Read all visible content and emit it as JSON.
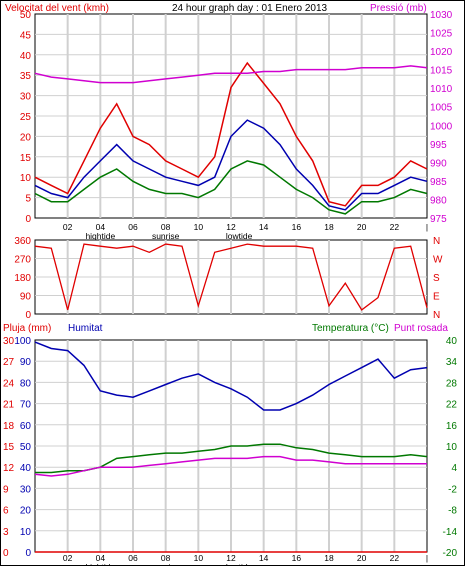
{
  "colors": {
    "red": "#e00000",
    "blue": "#0000b0",
    "green": "#007800",
    "magenta": "#d000d0",
    "grid": "#d0d0d0",
    "frame": "#000000"
  },
  "chart_data": [
    {
      "type": "line",
      "title": "24 hour graph day : 01 Enero 2013",
      "ylabel_left": "Velocitat del vent (kmh)",
      "ylabel_right": "Pressió (mb)",
      "ylim_left": [
        0,
        50
      ],
      "ylim_right": [
        975,
        1030
      ],
      "yticks_left": [
        "0",
        "5",
        "10",
        "15",
        "20",
        "25",
        "30",
        "35",
        "40",
        "45",
        "50"
      ],
      "yticks_right": [
        "975",
        "980",
        "985",
        "990",
        "995",
        "1000",
        "1005",
        "1010",
        "1015",
        "1020",
        "1025",
        "1030"
      ],
      "xticks": [
        "02",
        "04",
        "06",
        "08",
        "10",
        "12",
        "14",
        "16",
        "18",
        "20",
        "22",
        "|"
      ],
      "xannotations": [
        "hightide",
        "sunrise",
        "lowtide"
      ],
      "x": [
        0,
        1,
        2,
        3,
        4,
        5,
        6,
        7,
        8,
        9,
        10,
        11,
        12,
        13,
        14,
        15,
        16,
        17,
        18,
        19,
        20,
        21,
        22,
        23,
        24
      ],
      "series": [
        {
          "axis": "left",
          "color": "red",
          "values": [
            10,
            8,
            6,
            14,
            22,
            28,
            20,
            18,
            14,
            12,
            10,
            15,
            32,
            38,
            33,
            28,
            20,
            14,
            4,
            3,
            8,
            8,
            10,
            14,
            12
          ]
        },
        {
          "axis": "left",
          "color": "blue",
          "values": [
            8,
            6,
            5,
            10,
            14,
            18,
            14,
            12,
            10,
            9,
            8,
            10,
            20,
            24,
            22,
            18,
            12,
            8,
            3,
            2,
            6,
            6,
            8,
            10,
            9
          ]
        },
        {
          "axis": "left",
          "color": "green",
          "values": [
            6,
            4,
            4,
            7,
            10,
            12,
            9,
            7,
            6,
            6,
            5,
            7,
            12,
            14,
            13,
            10,
            7,
            5,
            2,
            1,
            4,
            4,
            5,
            7,
            6
          ]
        },
        {
          "axis": "right",
          "color": "magenta",
          "values": [
            1014,
            1013,
            1012.5,
            1012,
            1011.5,
            1011.5,
            1011.5,
            1012,
            1012.5,
            1013,
            1013.5,
            1014,
            1014,
            1014,
            1014.5,
            1014.5,
            1015,
            1015,
            1015,
            1015,
            1015.5,
            1015.5,
            1015.5,
            1016,
            1015.5
          ]
        }
      ]
    },
    {
      "type": "line",
      "ylabel_left": "",
      "ylim": [
        0,
        360
      ],
      "yticks_left": [
        "0",
        "90",
        "180",
        "270",
        "360"
      ],
      "yticks_right": [
        "N",
        "E",
        "S",
        "W",
        "N"
      ],
      "x": [
        0,
        1,
        2,
        3,
        4,
        5,
        6,
        7,
        8,
        9,
        10,
        11,
        12,
        13,
        14,
        15,
        16,
        17,
        18,
        19,
        20,
        21,
        22,
        23,
        24
      ],
      "series": [
        {
          "color": "red",
          "values": [
            330,
            320,
            20,
            340,
            330,
            320,
            330,
            300,
            340,
            330,
            40,
            300,
            320,
            340,
            330,
            330,
            330,
            320,
            40,
            150,
            20,
            80,
            320,
            330,
            30
          ]
        }
      ]
    },
    {
      "type": "line",
      "ylabel_left": "Pluja (mm)",
      "ylabel_left2": "Humitat",
      "ylabel_right": "Temperatura (°C)",
      "ylabel_right2": "Punt rosada",
      "ylim_rain": [
        0,
        30
      ],
      "ylim_humidity": [
        0,
        100
      ],
      "ylim_temp": [
        -20,
        40
      ],
      "yticks_rain": [
        "0",
        "3",
        "6",
        "9",
        "12",
        "15",
        "18",
        "21",
        "24",
        "27",
        "30"
      ],
      "yticks_humidity": [
        "0",
        "10",
        "20",
        "30",
        "40",
        "50",
        "60",
        "70",
        "80",
        "90",
        "100"
      ],
      "yticks_temp": [
        "-20",
        "-14",
        "-8",
        "-2",
        "4",
        "10",
        "16",
        "22",
        "28",
        "34",
        "40"
      ],
      "xticks": [
        "02",
        "04",
        "06",
        "08",
        "10",
        "12",
        "14",
        "16",
        "18",
        "20",
        "22",
        "|"
      ],
      "xannotations": [
        "hightide",
        "sunrise",
        "lowtide"
      ],
      "x": [
        0,
        1,
        2,
        3,
        4,
        5,
        6,
        7,
        8,
        9,
        10,
        11,
        12,
        13,
        14,
        15,
        16,
        17,
        18,
        19,
        20,
        21,
        22,
        23,
        24
      ],
      "series": [
        {
          "axis": "humidity",
          "color": "blue",
          "values": [
            99,
            96,
            95,
            88,
            76,
            74,
            73,
            76,
            79,
            82,
            84,
            80,
            77,
            73,
            67,
            67,
            70,
            74,
            79,
            83,
            87,
            91,
            82,
            86,
            87
          ]
        },
        {
          "axis": "temp",
          "color": "green",
          "values": [
            2.5,
            2.5,
            3,
            3,
            4,
            6.5,
            7,
            7.5,
            8,
            8,
            8.5,
            9,
            10,
            10,
            10.5,
            10.5,
            9.5,
            9,
            8,
            7.5,
            7,
            7,
            7,
            7.5,
            7
          ]
        },
        {
          "axis": "temp",
          "color": "magenta",
          "values": [
            2,
            1.5,
            2,
            3,
            4,
            4,
            4,
            4.5,
            5,
            5.5,
            6,
            6.5,
            6.5,
            6.5,
            7,
            7,
            6,
            6,
            5.5,
            5,
            5,
            5,
            5,
            5,
            5
          ]
        },
        {
          "axis": "rain",
          "color": "red",
          "values": [
            0,
            0,
            0,
            0,
            0,
            0,
            0,
            0,
            0,
            0,
            0,
            0,
            0,
            0,
            0,
            0,
            0,
            0,
            0,
            0,
            0,
            0,
            0,
            0,
            0
          ]
        }
      ]
    }
  ]
}
